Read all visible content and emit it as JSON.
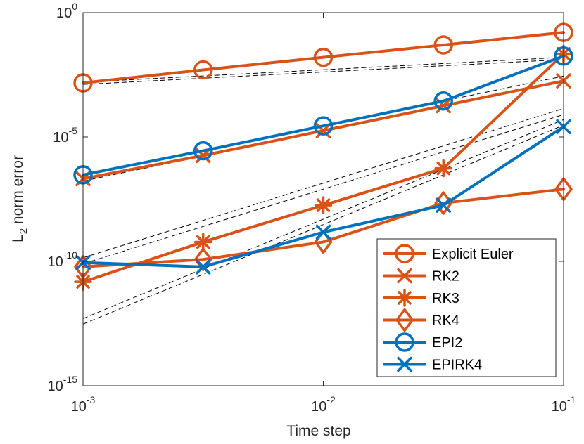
{
  "chart_data": {
    "type": "line",
    "xlabel": "Time step",
    "ylabel_main": "L",
    "ylabel_sub": "2",
    "ylabel_rest": " norm error",
    "xscale": "log",
    "yscale": "log",
    "xlim": [
      0.001,
      0.1
    ],
    "ylim": [
      1e-15,
      1
    ],
    "x_ticks": [
      {
        "base": "10",
        "exp": "-3",
        "value": 0.001
      },
      {
        "base": "10",
        "exp": "-2",
        "value": 0.01
      },
      {
        "base": "10",
        "exp": "-1",
        "value": 0.1
      }
    ],
    "y_ticks": [
      {
        "base": "10",
        "exp": "0",
        "value": 1
      },
      {
        "base": "10",
        "exp": "-5",
        "value": 1e-05
      },
      {
        "base": "10",
        "exp": "-10",
        "value": 1e-10
      },
      {
        "base": "10",
        "exp": "-15",
        "value": 1e-15
      }
    ],
    "grid": false,
    "legend_position": "bottom-right",
    "colors": {
      "orange": "#D95319",
      "blue": "#0072BD",
      "reference": "#000000"
    },
    "x": [
      0.001,
      0.003162,
      0.01,
      0.03162,
      0.1
    ],
    "series": [
      {
        "name": "Explicit Euler",
        "color": "#D95319",
        "marker": "circle",
        "values": [
          0.0015,
          0.005,
          0.016,
          0.05,
          0.16
        ]
      },
      {
        "name": "RK2",
        "color": "#D95319",
        "marker": "x",
        "values": [
          2.1e-07,
          1.8e-06,
          1.8e-05,
          0.00018,
          0.0018
        ]
      },
      {
        "name": "RK3",
        "color": "#D95319",
        "marker": "asterisk",
        "values": [
          1.5e-11,
          6e-10,
          1.8e-08,
          5.5e-07,
          0.022
        ]
      },
      {
        "name": "RK4",
        "color": "#D95319",
        "marker": "diamond",
        "values": [
          6e-11,
          1.2e-10,
          6e-10,
          2.2e-08,
          8e-08
        ]
      },
      {
        "name": "EPI2",
        "color": "#0072BD",
        "marker": "circle",
        "values": [
          3e-07,
          2.8e-06,
          2.8e-05,
          0.00028,
          0.018
        ]
      },
      {
        "name": "EPIRK4",
        "color": "#0072BD",
        "marker": "x",
        "values": [
          9e-11,
          6e-11,
          1.5e-09,
          1.8e-08,
          2.6e-05
        ]
      }
    ],
    "reference_lines": [
      {
        "order": 1,
        "values": [
          0.0013,
          0.013
        ]
      },
      {
        "order": 1,
        "values": [
          0.0016,
          0.016
        ]
      },
      {
        "order": 2,
        "values": [
          1.7e-07,
          0.0017
        ]
      },
      {
        "order": 2,
        "values": [
          2.8e-07,
          0.0028
        ]
      },
      {
        "order": 3,
        "values": [
          8e-11,
          8e-05
        ]
      },
      {
        "order": 3,
        "values": [
          1.4e-10,
          0.00014
        ]
      },
      {
        "order": 4,
        "values": [
          3e-13,
          3e-05
        ]
      },
      {
        "order": 4,
        "values": [
          5e-13,
          5e-05
        ]
      }
    ]
  }
}
